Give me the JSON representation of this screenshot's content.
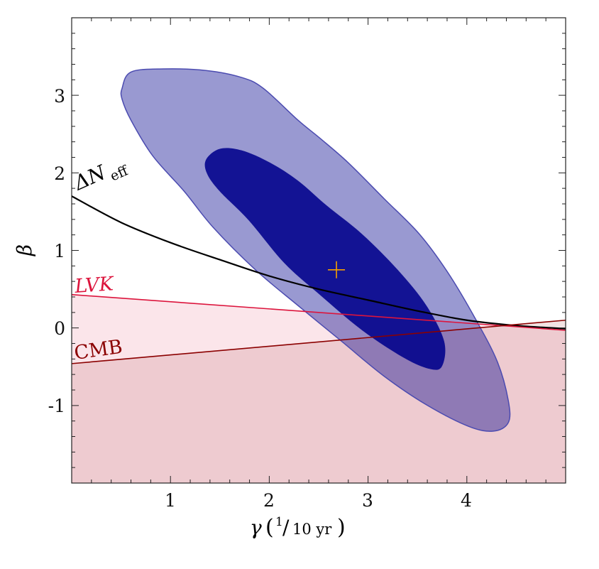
{
  "chart_data": {
    "type": "contour",
    "xlabel": "γ",
    "xlabel_unit": "(1/10 yr)",
    "xlabel_unit_num": "1",
    "xlabel_unit_den": "10 yr",
    "ylabel": "β",
    "xlim": [
      0,
      5
    ],
    "ylim": [
      -2,
      4
    ],
    "xticks": [
      1,
      2,
      3,
      4
    ],
    "yticks": [
      -1,
      0,
      1,
      2,
      3
    ],
    "xtick_labels": [
      "1",
      "2",
      "3",
      "4"
    ],
    "ytick_labels": [
      "-1",
      "0",
      "1",
      "2",
      "3"
    ],
    "minor_tick_step": 0.2,
    "grid": false,
    "colors": {
      "contour_fill": "#00008b",
      "contour_edge": "#4b4bb0",
      "best_fit": "#f5a000",
      "neff": "#000000",
      "lvk": "#dc143c",
      "cmb": "#8b0000"
    },
    "contours": [
      {
        "level": "outer",
        "points": [
          [
            0.51,
            3.09
          ],
          [
            0.6,
            3.3
          ],
          [
            0.93,
            3.34
          ],
          [
            1.36,
            3.32
          ],
          [
            1.72,
            3.23
          ],
          [
            1.94,
            3.09
          ],
          [
            2.29,
            2.68
          ],
          [
            2.51,
            2.45
          ],
          [
            2.8,
            2.13
          ],
          [
            3.16,
            1.67
          ],
          [
            3.52,
            1.21
          ],
          [
            3.81,
            0.71
          ],
          [
            4.09,
            0.11
          ],
          [
            4.31,
            -0.44
          ],
          [
            4.42,
            -0.94
          ],
          [
            4.42,
            -1.22
          ],
          [
            4.27,
            -1.33
          ],
          [
            4.02,
            -1.27
          ],
          [
            3.59,
            -0.99
          ],
          [
            3.16,
            -0.62
          ],
          [
            2.73,
            -0.17
          ],
          [
            2.29,
            0.29
          ],
          [
            1.86,
            0.75
          ],
          [
            1.43,
            1.3
          ],
          [
            1.14,
            1.76
          ],
          [
            0.82,
            2.22
          ],
          [
            0.6,
            2.68
          ],
          [
            0.51,
            2.95
          ]
        ]
      },
      {
        "level": "inner",
        "points": [
          [
            1.36,
            2.17
          ],
          [
            1.5,
            2.31
          ],
          [
            1.72,
            2.29
          ],
          [
            2.01,
            2.13
          ],
          [
            2.29,
            1.9
          ],
          [
            2.58,
            1.58
          ],
          [
            2.94,
            1.21
          ],
          [
            3.3,
            0.75
          ],
          [
            3.59,
            0.29
          ],
          [
            3.77,
            -0.17
          ],
          [
            3.75,
            -0.49
          ],
          [
            3.63,
            -0.53
          ],
          [
            3.37,
            -0.39
          ],
          [
            2.94,
            -0.03
          ],
          [
            2.51,
            0.43
          ],
          [
            2.15,
            0.84
          ],
          [
            1.79,
            1.39
          ],
          [
            1.5,
            1.76
          ],
          [
            1.37,
            1.99
          ]
        ]
      }
    ],
    "best_fit": [
      2.68,
      0.75
    ],
    "series": [
      {
        "name": "ΔN",
        "name_sub": "eff",
        "x": [
          0,
          0.5,
          1,
          1.5,
          2,
          2.5,
          3,
          3.5,
          4,
          4.5,
          5
        ],
        "y": [
          1.7,
          1.36,
          1.1,
          0.88,
          0.67,
          0.5,
          0.36,
          0.22,
          0.1,
          0.03,
          -0.01
        ]
      },
      {
        "name": "LVK",
        "x": [
          0,
          5
        ],
        "y": [
          0.43,
          -0.03
        ],
        "shade_below": true
      },
      {
        "name": "CMB",
        "x": [
          0,
          5
        ],
        "y": [
          -0.46,
          0.1
        ],
        "shade_below": true
      }
    ]
  }
}
